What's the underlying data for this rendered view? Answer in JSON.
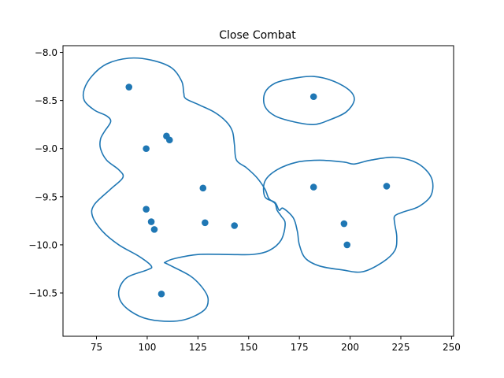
{
  "chart_data": {
    "type": "scatter",
    "title": "Close Combat",
    "xlabel": "",
    "ylabel": "",
    "xlim": [
      58.5,
      251
    ],
    "ylim": [
      -10.95,
      -7.93
    ],
    "xticks": [
      75,
      100,
      125,
      150,
      175,
      200,
      225,
      250
    ],
    "yticks": [
      -8.0,
      -8.5,
      -9.0,
      -9.5,
      -10.0,
      -10.5
    ],
    "xtick_labels": [
      "75",
      "100",
      "125",
      "150",
      "175",
      "200",
      "225",
      "250"
    ],
    "ytick_labels": [
      "−8.0",
      "−8.5",
      "−9.0",
      "−9.5",
      "−10.0",
      "−10.5"
    ],
    "grid": false,
    "legend": false,
    "colors": {
      "points": "#1f77b4",
      "contours": "#1f77b4"
    },
    "points": [
      {
        "x": 91,
        "y": -8.36
      },
      {
        "x": 99.5,
        "y": -9.0
      },
      {
        "x": 109.5,
        "y": -8.87
      },
      {
        "x": 111,
        "y": -8.91
      },
      {
        "x": 127.5,
        "y": -9.41
      },
      {
        "x": 99.5,
        "y": -9.63
      },
      {
        "x": 102,
        "y": -9.76
      },
      {
        "x": 103.5,
        "y": -9.84
      },
      {
        "x": 128.5,
        "y": -9.77
      },
      {
        "x": 143,
        "y": -9.8
      },
      {
        "x": 107,
        "y": -10.51
      },
      {
        "x": 182,
        "y": -8.46
      },
      {
        "x": 182,
        "y": -9.4
      },
      {
        "x": 218,
        "y": -9.39
      },
      {
        "x": 197,
        "y": -9.78
      },
      {
        "x": 198.5,
        "y": -10.0
      }
    ],
    "contours": [
      [
        [
          91,
          -8.06
        ],
        [
          102,
          -8.08
        ],
        [
          112,
          -8.16
        ],
        [
          117,
          -8.3
        ],
        [
          118,
          -8.42
        ],
        [
          119,
          -8.48
        ],
        [
          125,
          -8.54
        ],
        [
          133,
          -8.62
        ],
        [
          139,
          -8.72
        ],
        [
          142,
          -8.82
        ],
        [
          143,
          -8.96
        ],
        [
          144,
          -9.12
        ],
        [
          149,
          -9.2
        ],
        [
          154,
          -9.3
        ],
        [
          158,
          -9.42
        ],
        [
          160,
          -9.52
        ],
        [
          163,
          -9.57
        ],
        [
          164,
          -9.64
        ],
        [
          166,
          -9.7
        ],
        [
          168,
          -9.78
        ],
        [
          166,
          -9.95
        ],
        [
          160,
          -10.06
        ],
        [
          152,
          -10.1
        ],
        [
          140,
          -10.1
        ],
        [
          125,
          -10.1
        ],
        [
          114,
          -10.14
        ],
        [
          109,
          -10.18
        ],
        [
          110,
          -10.2
        ],
        [
          121,
          -10.32
        ],
        [
          127,
          -10.44
        ],
        [
          130,
          -10.56
        ],
        [
          128,
          -10.68
        ],
        [
          118,
          -10.78
        ],
        [
          106,
          -10.79
        ],
        [
          96,
          -10.74
        ],
        [
          88,
          -10.62
        ],
        [
          86,
          -10.48
        ],
        [
          90,
          -10.34
        ],
        [
          100,
          -10.26
        ],
        [
          102,
          -10.22
        ],
        [
          96,
          -10.12
        ],
        [
          86,
          -10.0
        ],
        [
          78,
          -9.86
        ],
        [
          73,
          -9.7
        ],
        [
          74,
          -9.58
        ],
        [
          82,
          -9.42
        ],
        [
          88,
          -9.3
        ],
        [
          86,
          -9.22
        ],
        [
          80,
          -9.12
        ],
        [
          77,
          -9.0
        ],
        [
          77,
          -8.9
        ],
        [
          79,
          -8.82
        ],
        [
          82,
          -8.72
        ],
        [
          80,
          -8.66
        ],
        [
          74,
          -8.6
        ],
        [
          69,
          -8.5
        ],
        [
          69,
          -8.38
        ],
        [
          73,
          -8.24
        ],
        [
          80,
          -8.12
        ],
        [
          91,
          -8.06
        ]
      ],
      [
        [
          182,
          -8.25
        ],
        [
          192,
          -8.3
        ],
        [
          200,
          -8.4
        ],
        [
          202,
          -8.5
        ],
        [
          198,
          -8.62
        ],
        [
          190,
          -8.7
        ],
        [
          182,
          -8.75
        ],
        [
          172,
          -8.72
        ],
        [
          163,
          -8.66
        ],
        [
          158,
          -8.56
        ],
        [
          158,
          -8.42
        ],
        [
          163,
          -8.32
        ],
        [
          172,
          -8.27
        ],
        [
          182,
          -8.25
        ]
      ],
      [
        [
          185,
          -9.12
        ],
        [
          197,
          -9.14
        ],
        [
          202,
          -9.16
        ],
        [
          210,
          -9.12
        ],
        [
          222,
          -9.09
        ],
        [
          233,
          -9.15
        ],
        [
          240,
          -9.3
        ],
        [
          240,
          -9.48
        ],
        [
          234,
          -9.6
        ],
        [
          226,
          -9.66
        ],
        [
          222,
          -9.7
        ],
        [
          222,
          -9.78
        ],
        [
          223,
          -9.92
        ],
        [
          222,
          -10.06
        ],
        [
          216,
          -10.18
        ],
        [
          206,
          -10.28
        ],
        [
          196,
          -10.26
        ],
        [
          185,
          -10.22
        ],
        [
          178,
          -10.14
        ],
        [
          175,
          -10.0
        ],
        [
          174,
          -9.86
        ],
        [
          172,
          -9.72
        ],
        [
          167,
          -9.62
        ],
        [
          165,
          -9.64
        ],
        [
          163,
          -9.56
        ],
        [
          158,
          -9.5
        ],
        [
          158,
          -9.34
        ],
        [
          164,
          -9.22
        ],
        [
          174,
          -9.14
        ],
        [
          185,
          -9.12
        ]
      ]
    ]
  }
}
